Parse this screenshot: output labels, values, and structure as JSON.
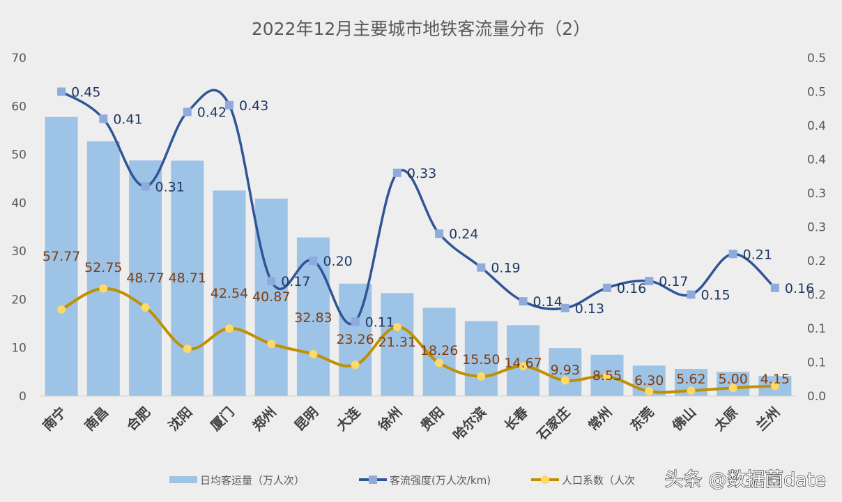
{
  "chart_data": {
    "type": "bar+line",
    "title": "2022年12月主要城市地铁客流量分布（2）",
    "categories": [
      "南宁",
      "南昌",
      "合肥",
      "沈阳",
      "厦门",
      "郑州",
      "昆明",
      "大连",
      "徐州",
      "贵阳",
      "哈尔滨",
      "长春",
      "石家庄",
      "常州",
      "东莞",
      "佛山",
      "太原",
      "兰州"
    ],
    "left_axis": {
      "ylim": [
        0,
        70
      ],
      "ticks": [
        "0",
        "10",
        "20",
        "30",
        "40",
        "50",
        "60",
        "70"
      ]
    },
    "right_axis": {
      "ylim": [
        0,
        0.5
      ],
      "ticks": [
        "0.0",
        "0.1",
        "0.1",
        "0.2",
        "0.2",
        "0.3",
        "0.3",
        "0.4",
        "0.4",
        "0.5",
        "0.5"
      ]
    },
    "grid": false,
    "legend_placement": "bottom",
    "series": [
      {
        "name": "日均客运量（万人次）",
        "type": "bar",
        "axis": "left",
        "color": "#9dc3e6",
        "values": [
          57.77,
          52.75,
          48.77,
          48.71,
          42.54,
          40.87,
          32.83,
          23.26,
          21.31,
          18.26,
          15.5,
          14.67,
          9.93,
          8.55,
          6.3,
          5.62,
          5.0,
          4.15
        ],
        "labels": [
          "57.77",
          "52.75",
          "48.77",
          "48.71",
          "42.54",
          "40.87",
          "32.83",
          "23.26",
          "21.31",
          "18.26",
          "15.50",
          "14.67",
          "9.93",
          "8.55",
          "6.30",
          "5.62",
          "5.00",
          "4.15"
        ]
      },
      {
        "name": "客流强度(万人次/km)",
        "type": "line",
        "axis": "right",
        "color": "#2f5597",
        "marker_color": "#8faadc",
        "values": [
          0.45,
          0.41,
          0.31,
          0.42,
          0.43,
          0.17,
          0.2,
          0.11,
          0.33,
          0.24,
          0.19,
          0.14,
          0.13,
          0.16,
          0.17,
          0.15,
          0.21,
          0.16
        ],
        "labels": [
          "0.45",
          "0.41",
          "0.31",
          "0.42",
          "0.43",
          "0.17",
          "0.20",
          "0.11",
          "0.33",
          "0.24",
          "0.19",
          "0.14",
          "0.13",
          "0.16",
          "0.17",
          "0.15",
          "0.21",
          "0.16"
        ]
      },
      {
        "name": "人口系数（人次",
        "type": "line",
        "axis": "right",
        "color": "#bf9000",
        "marker_color": "#ffd966",
        "values": [
          0.128,
          0.159,
          0.131,
          0.07,
          0.1,
          0.077,
          0.062,
          0.046,
          0.102,
          0.049,
          0.029,
          0.044,
          0.023,
          0.029,
          0.007,
          0.008,
          0.012,
          0.015
        ]
      }
    ]
  },
  "watermark": "头条 @数据菌date"
}
